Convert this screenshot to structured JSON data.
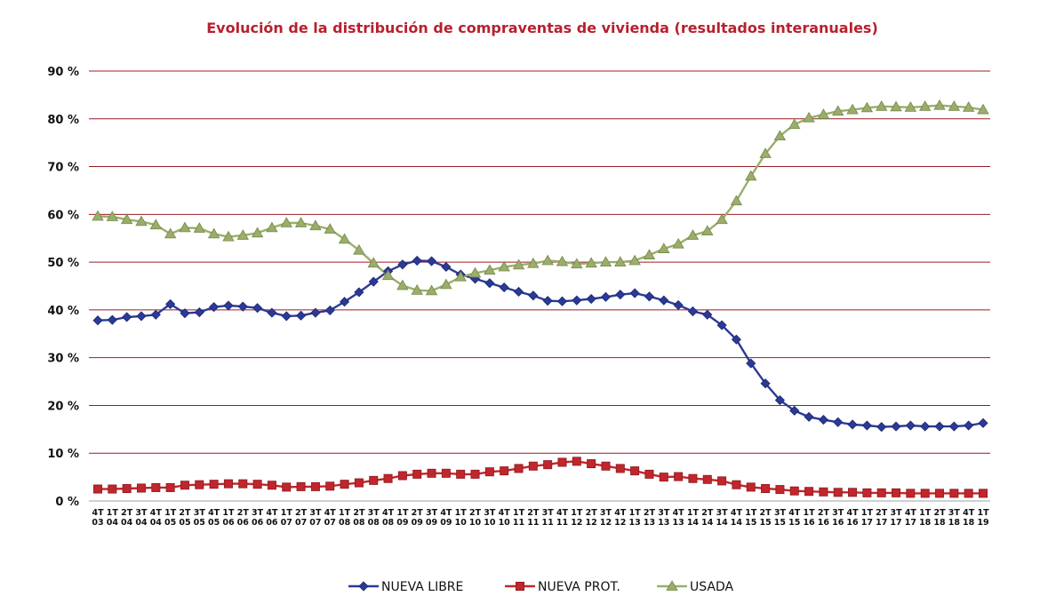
{
  "chart_data": {
    "type": "line",
    "title": "Evolución de la distribución de compraventas de vivienda (resultados interanuales)",
    "xlabel": "",
    "ylabel": "",
    "ylim": [
      0,
      90
    ],
    "yticks": [
      0,
      10,
      20,
      30,
      40,
      50,
      60,
      70,
      80,
      90
    ],
    "ytick_labels": [
      "0 %",
      "10 %",
      "20 %",
      "30 %",
      "40 %",
      "50 %",
      "60 %",
      "70 %",
      "80 %",
      "90 %"
    ],
    "grid": true,
    "legend": "bottom-center",
    "categories": [
      "4T\n03",
      "1T\n04",
      "2T\n04",
      "3T\n04",
      "4T\n04",
      "1T\n05",
      "2T\n05",
      "3T\n05",
      "4T\n05",
      "1T\n06",
      "2T\n06",
      "3T\n06",
      "4T\n06",
      "1T\n07",
      "2T\n07",
      "3T\n07",
      "4T\n07",
      "1T\n08",
      "2T\n08",
      "3T\n08",
      "4T\n08",
      "1T\n09",
      "2T\n09",
      "3T\n09",
      "4T\n09",
      "1T\n10",
      "2T\n10",
      "3T\n10",
      "4T\n10",
      "1T\n11",
      "2T\n11",
      "3T\n11",
      "4T\n11",
      "1T\n12",
      "2T\n12",
      "3T\n12",
      "4T\n12",
      "1T\n13",
      "2T\n13",
      "3T\n13",
      "4T\n13",
      "1T\n14",
      "2T\n14",
      "3T\n14",
      "4T\n14",
      "1T\n15",
      "2T\n15",
      "3T\n15",
      "4T\n15",
      "1T\n16",
      "2T\n16",
      "3T\n16",
      "4T\n16",
      "1T\n17",
      "2T\n17",
      "3T\n17",
      "4T\n17",
      "1T\n18",
      "2T\n18",
      "3T\n18",
      "4T\n18",
      "1T\n19"
    ],
    "series": [
      {
        "name": "NUEVA LIBRE",
        "color": "#2b3a96",
        "marker": "diamond",
        "values": [
          37.8,
          37.9,
          38.5,
          38.7,
          39.0,
          41.2,
          39.3,
          39.5,
          40.6,
          40.9,
          40.7,
          40.4,
          39.4,
          38.7,
          38.8,
          39.4,
          39.9,
          41.7,
          43.7,
          45.9,
          48.1,
          49.5,
          50.3,
          50.2,
          49.0,
          47.4,
          46.5,
          45.6,
          44.7,
          43.8,
          43.0,
          41.9,
          41.8,
          42.0,
          42.3,
          42.7,
          43.2,
          43.5,
          42.8,
          42.0,
          41.0,
          39.7,
          39.0,
          36.8,
          33.8,
          28.8,
          24.6,
          21.1,
          18.9,
          17.6,
          17.0,
          16.5,
          16.0,
          15.8,
          15.5,
          15.6,
          15.8,
          15.6,
          15.6,
          15.6,
          15.8,
          16.3
        ]
      },
      {
        "name": "NUEVA PROT.",
        "color": "#c0262c",
        "marker": "square",
        "values": [
          2.5,
          2.5,
          2.6,
          2.7,
          2.8,
          2.8,
          3.3,
          3.4,
          3.5,
          3.6,
          3.6,
          3.5,
          3.3,
          2.9,
          3.0,
          3.0,
          3.1,
          3.5,
          3.8,
          4.3,
          4.7,
          5.3,
          5.6,
          5.8,
          5.8,
          5.6,
          5.6,
          6.1,
          6.3,
          6.8,
          7.3,
          7.6,
          8.1,
          8.3,
          7.8,
          7.3,
          6.8,
          6.3,
          5.6,
          5.0,
          5.1,
          4.7,
          4.5,
          4.2,
          3.4,
          2.9,
          2.6,
          2.4,
          2.1,
          2.0,
          1.9,
          1.8,
          1.8,
          1.7,
          1.7,
          1.7,
          1.6,
          1.6,
          1.6,
          1.6,
          1.6,
          1.6
        ]
      },
      {
        "name": "USADA",
        "color": "#9aae6a",
        "marker": "triangle",
        "values": [
          59.6,
          59.5,
          58.9,
          58.5,
          57.8,
          55.9,
          57.2,
          57.1,
          55.9,
          55.3,
          55.6,
          56.1,
          57.2,
          58.2,
          58.2,
          57.6,
          56.9,
          54.8,
          52.5,
          49.8,
          47.2,
          45.1,
          44.1,
          44.0,
          45.3,
          46.9,
          47.7,
          48.3,
          49.0,
          49.4,
          49.7,
          50.3,
          50.1,
          49.6,
          49.8,
          50.0,
          50.0,
          50.3,
          51.5,
          52.8,
          53.8,
          55.6,
          56.5,
          58.9,
          62.8,
          68.0,
          72.7,
          76.4,
          78.8,
          80.2,
          80.9,
          81.6,
          81.9,
          82.3,
          82.6,
          82.5,
          82.4,
          82.6,
          82.8,
          82.6,
          82.4,
          81.9
        ]
      }
    ]
  }
}
